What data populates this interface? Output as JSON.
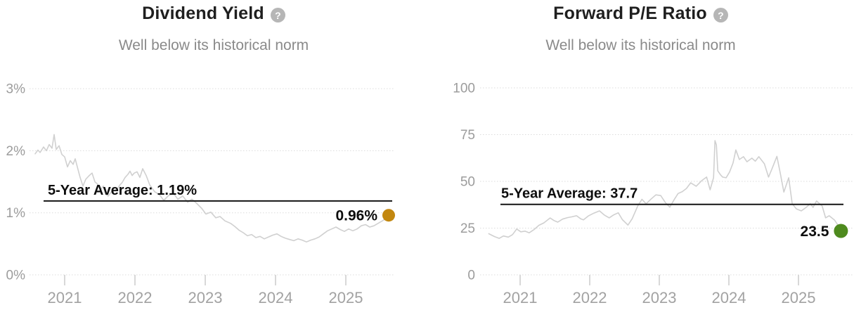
{
  "chart_data": [
    {
      "type": "line",
      "title": "Dividend Yield",
      "subtitle": "Well below its historical norm",
      "help_glyph": "?",
      "help_icon": "question-mark-icon",
      "series_name": "Dividend Yield (5-year history)",
      "series_color": "#d0d0d0",
      "avg_label": "5-Year Average: 1.19%",
      "avg_value": 1.19,
      "current_label": "0.96%",
      "current_value": 0.96,
      "current_dot_color": "#c2870f",
      "grid": true,
      "legend": "none",
      "ylim": [
        0,
        3.35
      ],
      "x_range": [
        2020.55,
        2025.65
      ],
      "ytick_values": [
        0,
        1,
        2,
        3
      ],
      "ytick_labels": [
        "0%",
        "1%",
        "2%",
        "3%"
      ],
      "xtick_values": [
        2021,
        2022,
        2023,
        2024,
        2025
      ],
      "xtick_labels": [
        "2021",
        "2022",
        "2023",
        "2024",
        "2025"
      ],
      "points": [
        [
          2020.58,
          1.95
        ],
        [
          2020.62,
          2.01
        ],
        [
          2020.65,
          1.97
        ],
        [
          2020.7,
          2.06
        ],
        [
          2020.74,
          2.0
        ],
        [
          2020.78,
          2.1
        ],
        [
          2020.82,
          2.04
        ],
        [
          2020.85,
          2.26
        ],
        [
          2020.88,
          2.02
        ],
        [
          2020.92,
          2.08
        ],
        [
          2020.96,
          1.94
        ],
        [
          2021.0,
          1.9
        ],
        [
          2021.04,
          1.74
        ],
        [
          2021.08,
          1.84
        ],
        [
          2021.12,
          1.78
        ],
        [
          2021.15,
          1.87
        ],
        [
          2021.18,
          1.74
        ],
        [
          2021.22,
          1.57
        ],
        [
          2021.26,
          1.43
        ],
        [
          2021.3,
          1.54
        ],
        [
          2021.35,
          1.6
        ],
        [
          2021.39,
          1.64
        ],
        [
          2021.43,
          1.5
        ],
        [
          2021.47,
          1.46
        ],
        [
          2021.51,
          1.37
        ],
        [
          2021.55,
          1.43
        ],
        [
          2021.58,
          1.3
        ],
        [
          2021.62,
          1.27
        ],
        [
          2021.66,
          1.33
        ],
        [
          2021.7,
          1.4
        ],
        [
          2021.74,
          1.36
        ],
        [
          2021.78,
          1.44
        ],
        [
          2021.82,
          1.49
        ],
        [
          2021.86,
          1.57
        ],
        [
          2021.9,
          1.62
        ],
        [
          2021.93,
          1.67
        ],
        [
          2021.96,
          1.6
        ],
        [
          2021.99,
          1.64
        ],
        [
          2022.03,
          1.66
        ],
        [
          2022.07,
          1.57
        ],
        [
          2022.11,
          1.71
        ],
        [
          2022.16,
          1.6
        ],
        [
          2022.21,
          1.45
        ],
        [
          2022.28,
          1.34
        ],
        [
          2022.35,
          1.29
        ],
        [
          2022.41,
          1.2
        ],
        [
          2022.48,
          1.28
        ],
        [
          2022.55,
          1.31
        ],
        [
          2022.61,
          1.22
        ],
        [
          2022.68,
          1.27
        ],
        [
          2022.75,
          1.17
        ],
        [
          2022.81,
          1.22
        ],
        [
          2022.88,
          1.15
        ],
        [
          2022.95,
          1.07
        ],
        [
          2023.01,
          0.98
        ],
        [
          2023.08,
          1.01
        ],
        [
          2023.15,
          0.92
        ],
        [
          2023.21,
          0.94
        ],
        [
          2023.28,
          0.87
        ],
        [
          2023.36,
          0.83
        ],
        [
          2023.42,
          0.78
        ],
        [
          2023.48,
          0.72
        ],
        [
          2023.54,
          0.68
        ],
        [
          2023.6,
          0.63
        ],
        [
          2023.66,
          0.65
        ],
        [
          2023.72,
          0.6
        ],
        [
          2023.78,
          0.62
        ],
        [
          2023.84,
          0.58
        ],
        [
          2023.9,
          0.61
        ],
        [
          2023.96,
          0.64
        ],
        [
          2024.02,
          0.66
        ],
        [
          2024.08,
          0.62
        ],
        [
          2024.14,
          0.59
        ],
        [
          2024.2,
          0.57
        ],
        [
          2024.26,
          0.55
        ],
        [
          2024.32,
          0.58
        ],
        [
          2024.38,
          0.56
        ],
        [
          2024.44,
          0.53
        ],
        [
          2024.5,
          0.56
        ],
        [
          2024.56,
          0.58
        ],
        [
          2024.62,
          0.61
        ],
        [
          2024.68,
          0.66
        ],
        [
          2024.74,
          0.71
        ],
        [
          2024.8,
          0.74
        ],
        [
          2024.86,
          0.77
        ],
        [
          2024.92,
          0.73
        ],
        [
          2024.98,
          0.7
        ],
        [
          2025.04,
          0.74
        ],
        [
          2025.1,
          0.71
        ],
        [
          2025.16,
          0.74
        ],
        [
          2025.22,
          0.79
        ],
        [
          2025.28,
          0.81
        ],
        [
          2025.34,
          0.77
        ],
        [
          2025.4,
          0.79
        ],
        [
          2025.46,
          0.83
        ],
        [
          2025.52,
          0.87
        ],
        [
          2025.57,
          0.91
        ],
        [
          2025.61,
          0.96
        ]
      ]
    },
    {
      "type": "line",
      "title": "Forward P/E Ratio",
      "subtitle": "Well below its historical norm",
      "help_glyph": "?",
      "help_icon": "question-mark-icon",
      "series_name": "Forward P/E Ratio (5-year history)",
      "series_color": "#d0d0d0",
      "avg_label": "5-Year Average: 37.7",
      "avg_value": 37.7,
      "current_label": "23.5",
      "current_value": 23.5,
      "current_dot_color": "#4e8a1e",
      "grid": true,
      "legend": "none",
      "ylim": [
        0,
        110
      ],
      "x_range": [
        2020.55,
        2025.65
      ],
      "ytick_values": [
        0,
        25,
        50,
        75,
        100
      ],
      "ytick_labels": [
        "0",
        "25",
        "50",
        "75",
        "100"
      ],
      "xtick_values": [
        2021,
        2022,
        2023,
        2024,
        2025
      ],
      "xtick_labels": [
        "2021",
        "2022",
        "2023",
        "2024",
        "2025"
      ],
      "points": [
        [
          2020.55,
          22.0
        ],
        [
          2020.63,
          20.5
        ],
        [
          2020.7,
          19.5
        ],
        [
          2020.76,
          20.8
        ],
        [
          2020.83,
          20.2
        ],
        [
          2020.89,
          21.5
        ],
        [
          2020.95,
          24.5
        ],
        [
          2021.01,
          23.0
        ],
        [
          2021.07,
          23.4
        ],
        [
          2021.13,
          22.5
        ],
        [
          2021.2,
          24.2
        ],
        [
          2021.27,
          26.5
        ],
        [
          2021.34,
          27.8
        ],
        [
          2021.43,
          30.4
        ],
        [
          2021.49,
          29.0
        ],
        [
          2021.54,
          28.2
        ],
        [
          2021.61,
          29.8
        ],
        [
          2021.68,
          30.6
        ],
        [
          2021.74,
          31.0
        ],
        [
          2021.81,
          31.6
        ],
        [
          2021.87,
          30.0
        ],
        [
          2021.91,
          29.4
        ],
        [
          2021.98,
          31.5
        ],
        [
          2022.06,
          33.0
        ],
        [
          2022.14,
          34.2
        ],
        [
          2022.21,
          32.0
        ],
        [
          2022.28,
          30.5
        ],
        [
          2022.34,
          32.0
        ],
        [
          2022.41,
          33.2
        ],
        [
          2022.47,
          29.5
        ],
        [
          2022.55,
          26.6
        ],
        [
          2022.61,
          30.0
        ],
        [
          2022.69,
          36.8
        ],
        [
          2022.75,
          40.4
        ],
        [
          2022.81,
          38.0
        ],
        [
          2022.88,
          40.5
        ],
        [
          2022.95,
          42.8
        ],
        [
          2023.02,
          42.4
        ],
        [
          2023.09,
          38.5
        ],
        [
          2023.15,
          36.2
        ],
        [
          2023.21,
          40.0
        ],
        [
          2023.27,
          43.5
        ],
        [
          2023.33,
          44.5
        ],
        [
          2023.39,
          46.2
        ],
        [
          2023.45,
          49.2
        ],
        [
          2023.53,
          47.4
        ],
        [
          2023.61,
          50.4
        ],
        [
          2023.68,
          52.3
        ],
        [
          2023.73,
          45.5
        ],
        [
          2023.78,
          52.0
        ],
        [
          2023.8,
          71.8
        ],
        [
          2023.82,
          69.5
        ],
        [
          2023.84,
          55.6
        ],
        [
          2023.88,
          53.5
        ],
        [
          2023.91,
          52.3
        ],
        [
          2023.96,
          51.9
        ],
        [
          2024.01,
          55.0
        ],
        [
          2024.06,
          59.8
        ],
        [
          2024.1,
          66.8
        ],
        [
          2024.15,
          61.7
        ],
        [
          2024.21,
          63.2
        ],
        [
          2024.26,
          60.5
        ],
        [
          2024.33,
          62.4
        ],
        [
          2024.38,
          60.8
        ],
        [
          2024.43,
          63.2
        ],
        [
          2024.51,
          59.4
        ],
        [
          2024.57,
          52.3
        ],
        [
          2024.62,
          56.8
        ],
        [
          2024.69,
          63.4
        ],
        [
          2024.74,
          54.0
        ],
        [
          2024.79,
          44.3
        ],
        [
          2024.86,
          51.9
        ],
        [
          2024.91,
          38.0
        ],
        [
          2024.97,
          35.3
        ],
        [
          2025.04,
          34.2
        ],
        [
          2025.11,
          36.1
        ],
        [
          2025.17,
          38.0
        ],
        [
          2025.21,
          36.1
        ],
        [
          2025.26,
          39.5
        ],
        [
          2025.34,
          36.8
        ],
        [
          2025.39,
          30.5
        ],
        [
          2025.44,
          31.6
        ],
        [
          2025.52,
          29.2
        ],
        [
          2025.56,
          27.0
        ],
        [
          2025.61,
          23.5
        ]
      ]
    }
  ]
}
